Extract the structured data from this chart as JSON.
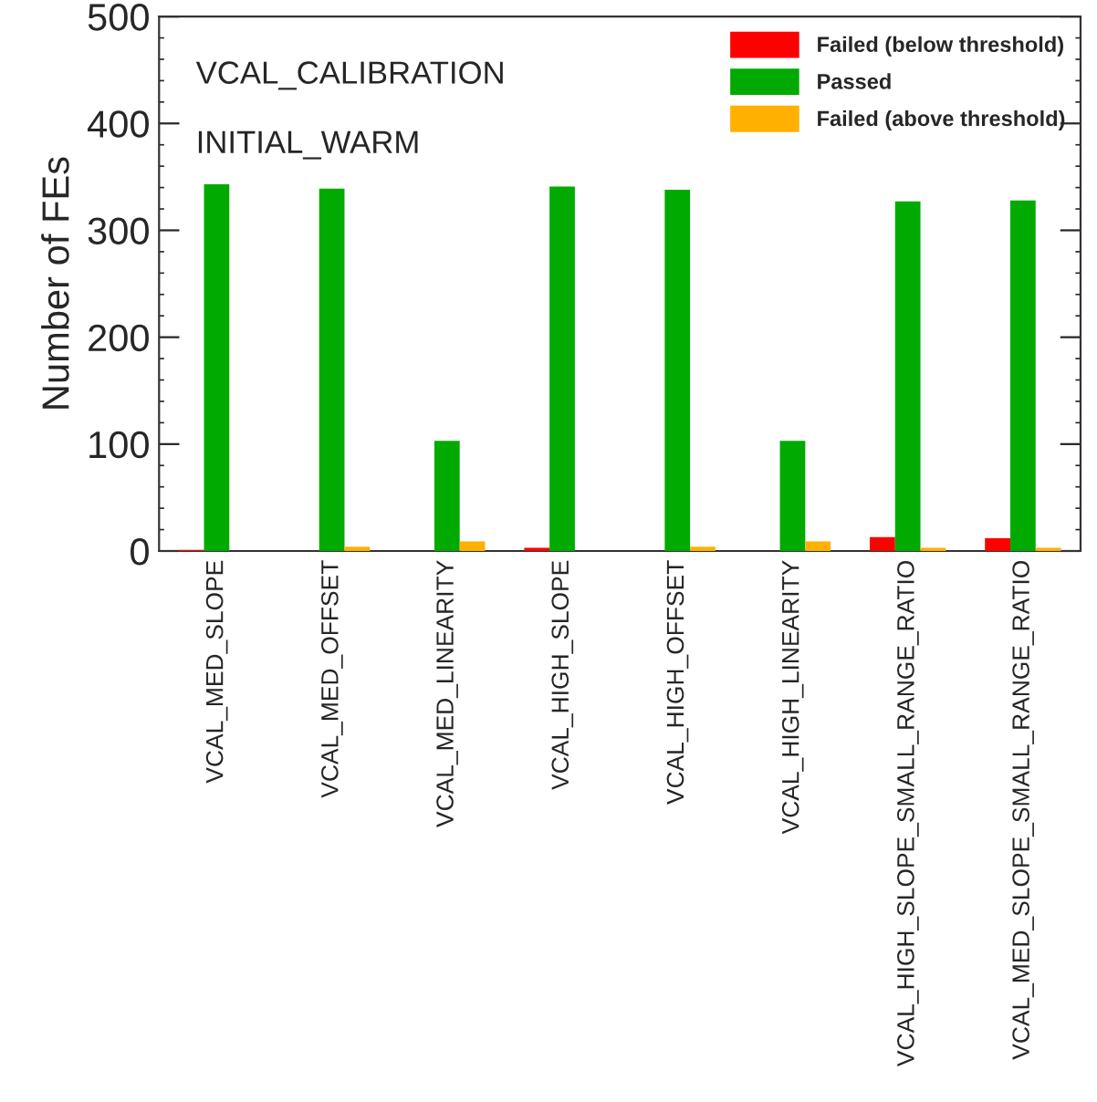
{
  "chart_data": {
    "type": "bar",
    "ylabel": "Number of FEs",
    "annotations": [
      "VCAL_CALIBRATION",
      "INITIAL_WARM"
    ],
    "categories": [
      "VCAL_MED_SLOPE",
      "VCAL_MED_OFFSET",
      "VCAL_MED_LINEARITY",
      "VCAL_HIGH_SLOPE",
      "VCAL_HIGH_OFFSET",
      "VCAL_HIGH_LINEARITY",
      "VCAL_HIGH_SLOPE_SMALL_RANGE_RATIO",
      "VCAL_MED_SLOPE_SMALL_RANGE_RATIO"
    ],
    "series": [
      {
        "name": "Failed (below threshold)",
        "color": "#ff0000",
        "values": [
          1,
          0,
          0,
          3,
          0,
          0,
          13,
          12
        ]
      },
      {
        "name": "Passed",
        "color": "#00aa00",
        "values": [
          343,
          339,
          103,
          341,
          338,
          103,
          327,
          328
        ]
      },
      {
        "name": "Failed (above threshold)",
        "color": "#ffb000",
        "values": [
          0,
          4,
          9,
          0,
          4,
          9,
          3,
          3
        ]
      }
    ],
    "ylim": [
      0,
      500
    ],
    "yticks": [
      0,
      100,
      200,
      300,
      400,
      500
    ],
    "grid": false,
    "legend": "top right"
  }
}
